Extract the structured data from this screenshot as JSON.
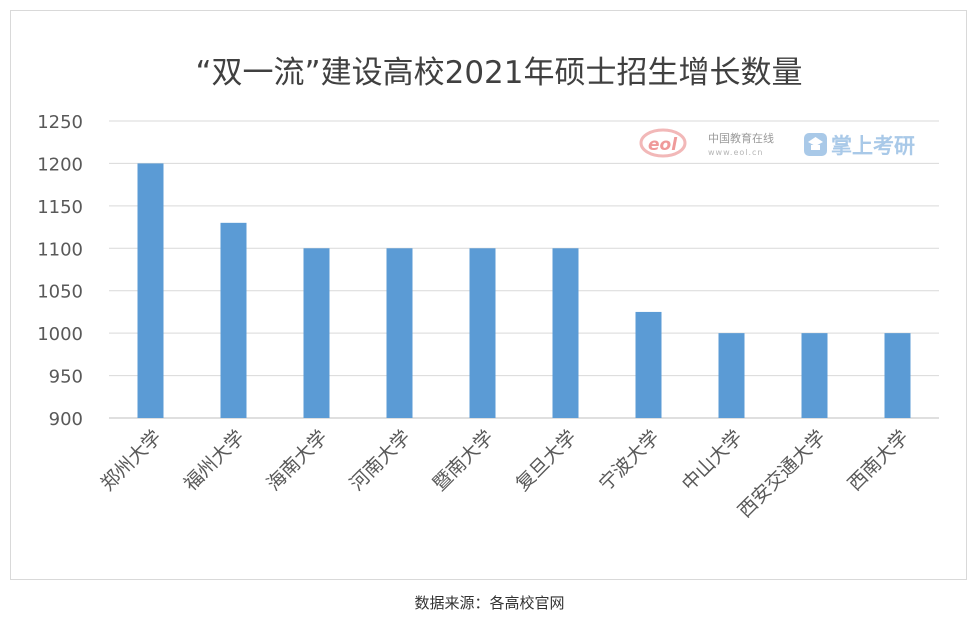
{
  "chart_data": {
    "type": "bar",
    "title": "“双一流”建设高校2021年硕士招生增长数量",
    "categories": [
      "郑州大学",
      "福州大学",
      "海南大学",
      "河南大学",
      "暨南大学",
      "复旦大学",
      "宁波大学",
      "中山大学",
      "西安交通大学",
      "西南大学"
    ],
    "values": [
      1200,
      1130,
      1100,
      1100,
      1100,
      1100,
      1025,
      1000,
      1000,
      1000
    ],
    "ylim": [
      900,
      1250
    ],
    "yticks": [
      900,
      950,
      1000,
      1050,
      1100,
      1150,
      1200,
      1250
    ],
    "grid": true,
    "bar_color": "#5b9bd5"
  },
  "watermark": {
    "eol_logo": "eol",
    "eol_name": "中国教育在线",
    "eol_url": "www.eol.cn",
    "brand_text": "掌上考研",
    "brand_icon": "graduation-cap-icon"
  },
  "caption": "数据来源：各高校官网"
}
